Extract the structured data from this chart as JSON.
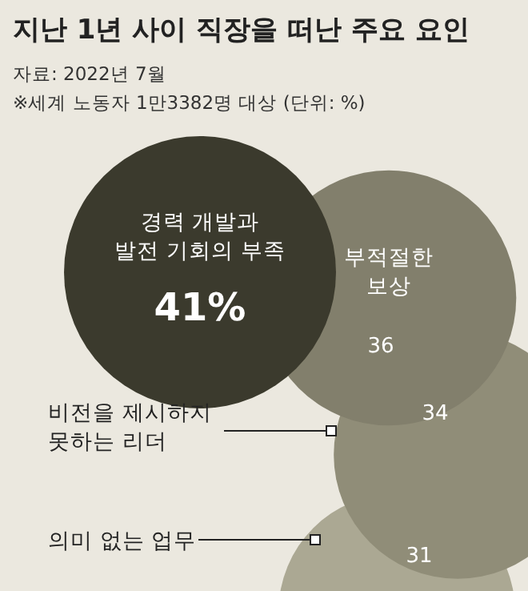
{
  "chart_data": {
    "type": "other",
    "title": "지난 1년 사이 직장을 떠난 주요 요인",
    "annotations": [
      "자료: 2022년 7월",
      "※세계 노동자 1만3382명 대상 (단위: %)"
    ],
    "categories": [
      "경력 개발과\n발전 기회의 부족",
      "부적절한\n보상",
      "비전을 제시하지\n못하는 리더",
      "의미 없는 업무"
    ],
    "values": [
      41,
      36,
      34,
      31
    ],
    "value_labels": [
      "41%",
      "36",
      "34",
      "31"
    ],
    "colors": [
      "#3b3a2d",
      "#827f6c",
      "#908d78",
      "#aba893"
    ]
  }
}
